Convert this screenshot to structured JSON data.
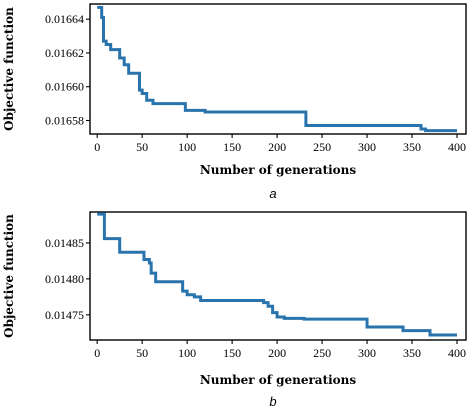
{
  "colors": {
    "series": "#2a74ae",
    "axis": "#000000"
  },
  "chart_data": [
    {
      "type": "line",
      "step": true,
      "caption": "a",
      "xlabel": "Number of generations",
      "ylabel": "Objective function",
      "xlim": [
        -8,
        410
      ],
      "ylim": [
        0.016572,
        0.016649
      ],
      "xticks": [
        0,
        50,
        100,
        150,
        200,
        250,
        300,
        350,
        400
      ],
      "xtick_labels": [
        "0",
        "50",
        "100",
        "150",
        "200",
        "250",
        "300",
        "350",
        "400"
      ],
      "yticks": [
        0.01658,
        0.0166,
        0.01662,
        0.01664
      ],
      "ytick_labels": [
        "0.01658",
        "0.01660",
        "0.01662",
        "0.01664"
      ],
      "series": [
        {
          "x": [
            0,
            5,
            7,
            10,
            15,
            25,
            30,
            35,
            47,
            50,
            55,
            62,
            98,
            120,
            230,
            232,
            355,
            360,
            365,
            400
          ],
          "y": [
            0.016647,
            0.016641,
            0.016627,
            0.016625,
            0.016622,
            0.016617,
            0.016613,
            0.016608,
            0.016598,
            0.016596,
            0.016592,
            0.01659,
            0.016586,
            0.016585,
            0.016585,
            0.016577,
            0.016577,
            0.016575,
            0.016574,
            0.016574
          ]
        }
      ]
    },
    {
      "type": "line",
      "step": true,
      "caption": "b",
      "xlabel": "Number of generations",
      "ylabel": "Objective function",
      "xlim": [
        -8,
        410
      ],
      "ylim": [
        0.014715,
        0.014893
      ],
      "xticks": [
        0,
        50,
        100,
        150,
        200,
        250,
        300,
        350,
        400
      ],
      "xtick_labels": [
        "0",
        "50",
        "100",
        "150",
        "200",
        "250",
        "300",
        "350",
        "400"
      ],
      "yticks": [
        0.01475,
        0.0148,
        0.01485
      ],
      "ytick_labels": [
        "0.01475",
        "0.01480",
        "0.01485"
      ],
      "series": [
        {
          "x": [
            0,
            5,
            8,
            22,
            25,
            52,
            58,
            60,
            65,
            95,
            100,
            108,
            115,
            185,
            190,
            195,
            200,
            208,
            230,
            300,
            340,
            370,
            400
          ],
          "y": [
            0.01489,
            0.01489,
            0.014856,
            0.014856,
            0.014837,
            0.014827,
            0.014822,
            0.014808,
            0.014796,
            0.014783,
            0.014778,
            0.014775,
            0.01477,
            0.014767,
            0.014762,
            0.014753,
            0.014747,
            0.014745,
            0.014744,
            0.014733,
            0.014728,
            0.014722,
            0.014722
          ]
        }
      ]
    }
  ]
}
